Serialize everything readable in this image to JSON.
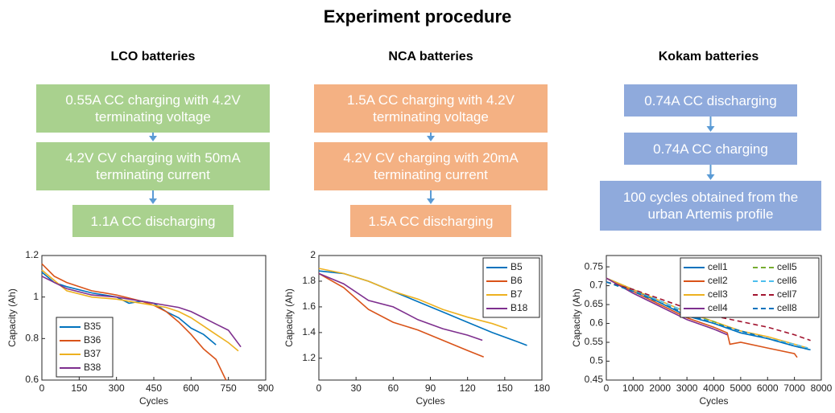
{
  "title": "Experiment procedure",
  "panels": [
    {
      "title": "LCO batteries",
      "color": "#a9d18e",
      "steps": [
        "0.55A CC charging with 4.2V terminating voltage",
        "4.2V CV charging with 50mA terminating current",
        "1.1A CC discharging"
      ]
    },
    {
      "title": "NCA batteries",
      "color": "#f4b183",
      "steps": [
        "1.5A CC charging with 4.2V terminating voltage",
        "4.2V CV charging with 20mA terminating current",
        "1.5A CC discharging"
      ]
    },
    {
      "title": "Kokam batteries",
      "color": "#8faadc",
      "steps": [
        "0.74A CC discharging",
        "0.74A CC charging",
        "100 cycles  obtained from the urban Artemis profile"
      ]
    }
  ],
  "chart_data": [
    {
      "type": "line",
      "x_label": "Cycles",
      "y_label": "Capacity (Ah)",
      "xlim": [
        0,
        900
      ],
      "xticks": [
        0,
        150,
        300,
        450,
        600,
        750,
        900
      ],
      "ylim": [
        0.6,
        1.2
      ],
      "yticks": [
        0.6,
        0.8,
        1,
        1.2
      ],
      "legend": "lower left",
      "legend_columns": 1,
      "series": [
        {
          "name": "B35",
          "color": "#0072bd",
          "dash": false,
          "x": [
            0,
            50,
            100,
            200,
            300,
            350,
            400,
            450,
            500,
            550,
            600,
            650,
            700
          ],
          "values": [
            1.12,
            1.07,
            1.05,
            1.02,
            1.0,
            0.97,
            0.98,
            0.97,
            0.93,
            0.9,
            0.85,
            0.82,
            0.77
          ]
        },
        {
          "name": "B36",
          "color": "#d95319",
          "dash": false,
          "x": [
            0,
            50,
            100,
            200,
            300,
            400,
            450,
            500,
            550,
            600,
            650,
            700,
            740
          ],
          "values": [
            1.16,
            1.1,
            1.07,
            1.03,
            1.01,
            0.98,
            0.96,
            0.93,
            0.88,
            0.82,
            0.75,
            0.7,
            0.6
          ]
        },
        {
          "name": "B37",
          "color": "#edb120",
          "dash": false,
          "x": [
            0,
            100,
            200,
            300,
            400,
            500,
            550,
            600,
            650,
            700,
            750,
            790
          ],
          "values": [
            1.13,
            1.03,
            1.0,
            0.99,
            0.97,
            0.95,
            0.93,
            0.9,
            0.86,
            0.82,
            0.78,
            0.74
          ]
        },
        {
          "name": "B38",
          "color": "#7e2f8e",
          "dash": false,
          "x": [
            0,
            100,
            200,
            300,
            400,
            500,
            550,
            600,
            650,
            700,
            750,
            800
          ],
          "values": [
            1.1,
            1.04,
            1.01,
            1.0,
            0.98,
            0.96,
            0.95,
            0.93,
            0.9,
            0.87,
            0.84,
            0.76
          ]
        }
      ]
    },
    {
      "type": "line",
      "x_label": "Cycles",
      "y_label": "Capacity (Ah)",
      "xlim": [
        0,
        180
      ],
      "xticks": [
        0,
        30,
        60,
        90,
        120,
        150,
        180
      ],
      "ylim": [
        1.03,
        2
      ],
      "yticks": [
        1.2,
        1.4,
        1.6,
        1.8,
        2
      ],
      "legend": "upper right",
      "legend_columns": 1,
      "series": [
        {
          "name": "B5",
          "color": "#0072bd",
          "dash": false,
          "x": [
            0,
            20,
            40,
            60,
            80,
            100,
            120,
            140,
            160,
            168
          ],
          "values": [
            1.88,
            1.86,
            1.8,
            1.72,
            1.64,
            1.56,
            1.48,
            1.4,
            1.33,
            1.3
          ]
        },
        {
          "name": "B6",
          "color": "#d95319",
          "dash": false,
          "x": [
            0,
            20,
            40,
            60,
            80,
            100,
            120,
            133
          ],
          "values": [
            1.86,
            1.75,
            1.58,
            1.48,
            1.42,
            1.34,
            1.26,
            1.21
          ]
        },
        {
          "name": "B7",
          "color": "#edb120",
          "dash": false,
          "x": [
            0,
            20,
            40,
            60,
            80,
            100,
            120,
            140,
            152
          ],
          "values": [
            1.9,
            1.86,
            1.8,
            1.72,
            1.66,
            1.58,
            1.52,
            1.47,
            1.43
          ]
        },
        {
          "name": "B18",
          "color": "#7e2f8e",
          "dash": false,
          "x": [
            0,
            20,
            40,
            60,
            80,
            100,
            120,
            132
          ],
          "values": [
            1.86,
            1.78,
            1.65,
            1.6,
            1.5,
            1.43,
            1.38,
            1.34
          ]
        }
      ]
    },
    {
      "type": "line",
      "x_label": "Cycles",
      "y_label": "Capacity (Ah)",
      "xlim": [
        0,
        8000
      ],
      "xticks": [
        0,
        1000,
        2000,
        3000,
        4000,
        5000,
        6000,
        7000,
        8000
      ],
      "ylim": [
        0.45,
        0.78
      ],
      "yticks": [
        0.45,
        0.5,
        0.55,
        0.6,
        0.65,
        0.7,
        0.75
      ],
      "legend": "upper right",
      "legend_columns": 2,
      "series": [
        {
          "name": "cell1",
          "color": "#0072bd",
          "dash": false,
          "x": [
            0,
            1000,
            2000,
            3000,
            4000,
            5000,
            6000,
            7000,
            7600
          ],
          "values": [
            0.72,
            0.69,
            0.655,
            0.62,
            0.6,
            0.575,
            0.56,
            0.54,
            0.53
          ]
        },
        {
          "name": "cell2",
          "color": "#d95319",
          "dash": false,
          "x": [
            0,
            1000,
            2000,
            3000,
            4000,
            4500,
            4600,
            5000,
            6000,
            7000,
            7100
          ],
          "values": [
            0.72,
            0.685,
            0.65,
            0.615,
            0.59,
            0.575,
            0.545,
            0.55,
            0.535,
            0.52,
            0.51
          ]
        },
        {
          "name": "cell3",
          "color": "#edb120",
          "dash": false,
          "x": [
            0,
            1000,
            2000,
            3000,
            4000,
            5000,
            6000,
            7000,
            7500
          ],
          "values": [
            0.72,
            0.69,
            0.66,
            0.63,
            0.605,
            0.58,
            0.565,
            0.545,
            0.535
          ]
        },
        {
          "name": "cell4",
          "color": "#7e2f8e",
          "dash": false,
          "x": [
            0,
            1000,
            2000,
            3000,
            4000,
            4500
          ],
          "values": [
            0.72,
            0.68,
            0.645,
            0.61,
            0.585,
            0.57
          ]
        },
        {
          "name": "cell5",
          "color": "#77ac30",
          "dash": true,
          "x": [
            0,
            1000,
            2000,
            3000,
            4000,
            4500
          ],
          "values": [
            0.71,
            0.685,
            0.655,
            0.625,
            0.605,
            0.59
          ]
        },
        {
          "name": "cell6",
          "color": "#4dbeee",
          "dash": true,
          "x": [
            0,
            1000,
            2000,
            3000,
            4000,
            5000,
            6000,
            7000,
            7500
          ],
          "values": [
            0.71,
            0.69,
            0.66,
            0.63,
            0.6,
            0.58,
            0.56,
            0.545,
            0.535
          ]
        },
        {
          "name": "cell7",
          "color": "#a2142f",
          "dash": true,
          "x": [
            0,
            1000,
            2000,
            3000,
            4000,
            5000,
            6000,
            7000,
            7600
          ],
          "values": [
            0.71,
            0.69,
            0.665,
            0.64,
            0.62,
            0.605,
            0.59,
            0.57,
            0.555
          ]
        },
        {
          "name": "cell8",
          "color": "#0072bd",
          "dash": true,
          "x": [
            0,
            1000,
            2000,
            3000,
            4000,
            5000,
            6000,
            7000,
            7600
          ],
          "values": [
            0.71,
            0.685,
            0.655,
            0.625,
            0.6,
            0.58,
            0.56,
            0.54,
            0.53
          ]
        }
      ]
    }
  ]
}
